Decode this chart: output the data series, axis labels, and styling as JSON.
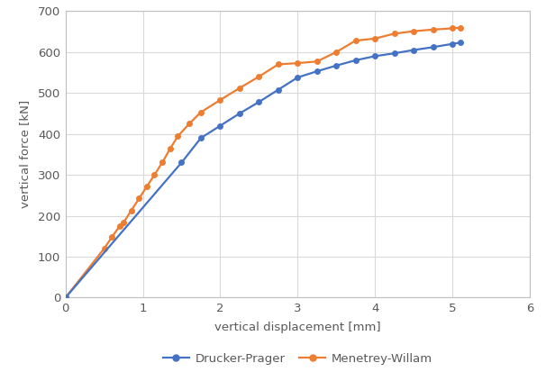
{
  "drucker_prager": {
    "x": [
      0.0,
      1.5,
      1.75,
      2.0,
      2.25,
      2.5,
      2.75,
      3.0,
      3.25,
      3.5,
      3.75,
      4.0,
      4.25,
      4.5,
      4.75,
      5.0,
      5.1
    ],
    "y": [
      0,
      330,
      390,
      420,
      450,
      478,
      508,
      538,
      553,
      567,
      580,
      590,
      597,
      605,
      612,
      620,
      623
    ],
    "color": "#4472C4",
    "label": "Drucker-Prager",
    "markersize": 5
  },
  "menetrey_willam": {
    "x": [
      0.0,
      0.5,
      0.6,
      0.7,
      0.75,
      0.85,
      0.95,
      1.05,
      1.15,
      1.25,
      1.35,
      1.45,
      1.6,
      1.75,
      2.0,
      2.25,
      2.5,
      2.75,
      3.0,
      3.25,
      3.5,
      3.75,
      4.0,
      4.25,
      4.5,
      4.75,
      5.0,
      5.1
    ],
    "y": [
      0,
      120,
      148,
      175,
      183,
      213,
      242,
      271,
      300,
      330,
      363,
      394,
      425,
      453,
      483,
      512,
      540,
      570,
      573,
      577,
      600,
      628,
      633,
      645,
      651,
      655,
      658,
      660
    ],
    "color": "#ED7D31",
    "label": "Menetrey-Willam",
    "markersize": 5
  },
  "xlabel": "vertical displacement [mm]",
  "ylabel": "vertical force [kN]",
  "xlim": [
    0,
    6
  ],
  "ylim": [
    0,
    700
  ],
  "xticks": [
    0,
    1,
    2,
    3,
    4,
    5,
    6
  ],
  "yticks": [
    0,
    100,
    200,
    300,
    400,
    500,
    600,
    700
  ],
  "grid_color": "#D9D9D9",
  "bg_color": "#FFFFFF",
  "plot_bg_color": "#FFFFFF",
  "fig_width": 6.06,
  "fig_height": 4.13,
  "dpi": 100,
  "tick_color": "#595959",
  "spine_color": "#BFBFBF"
}
